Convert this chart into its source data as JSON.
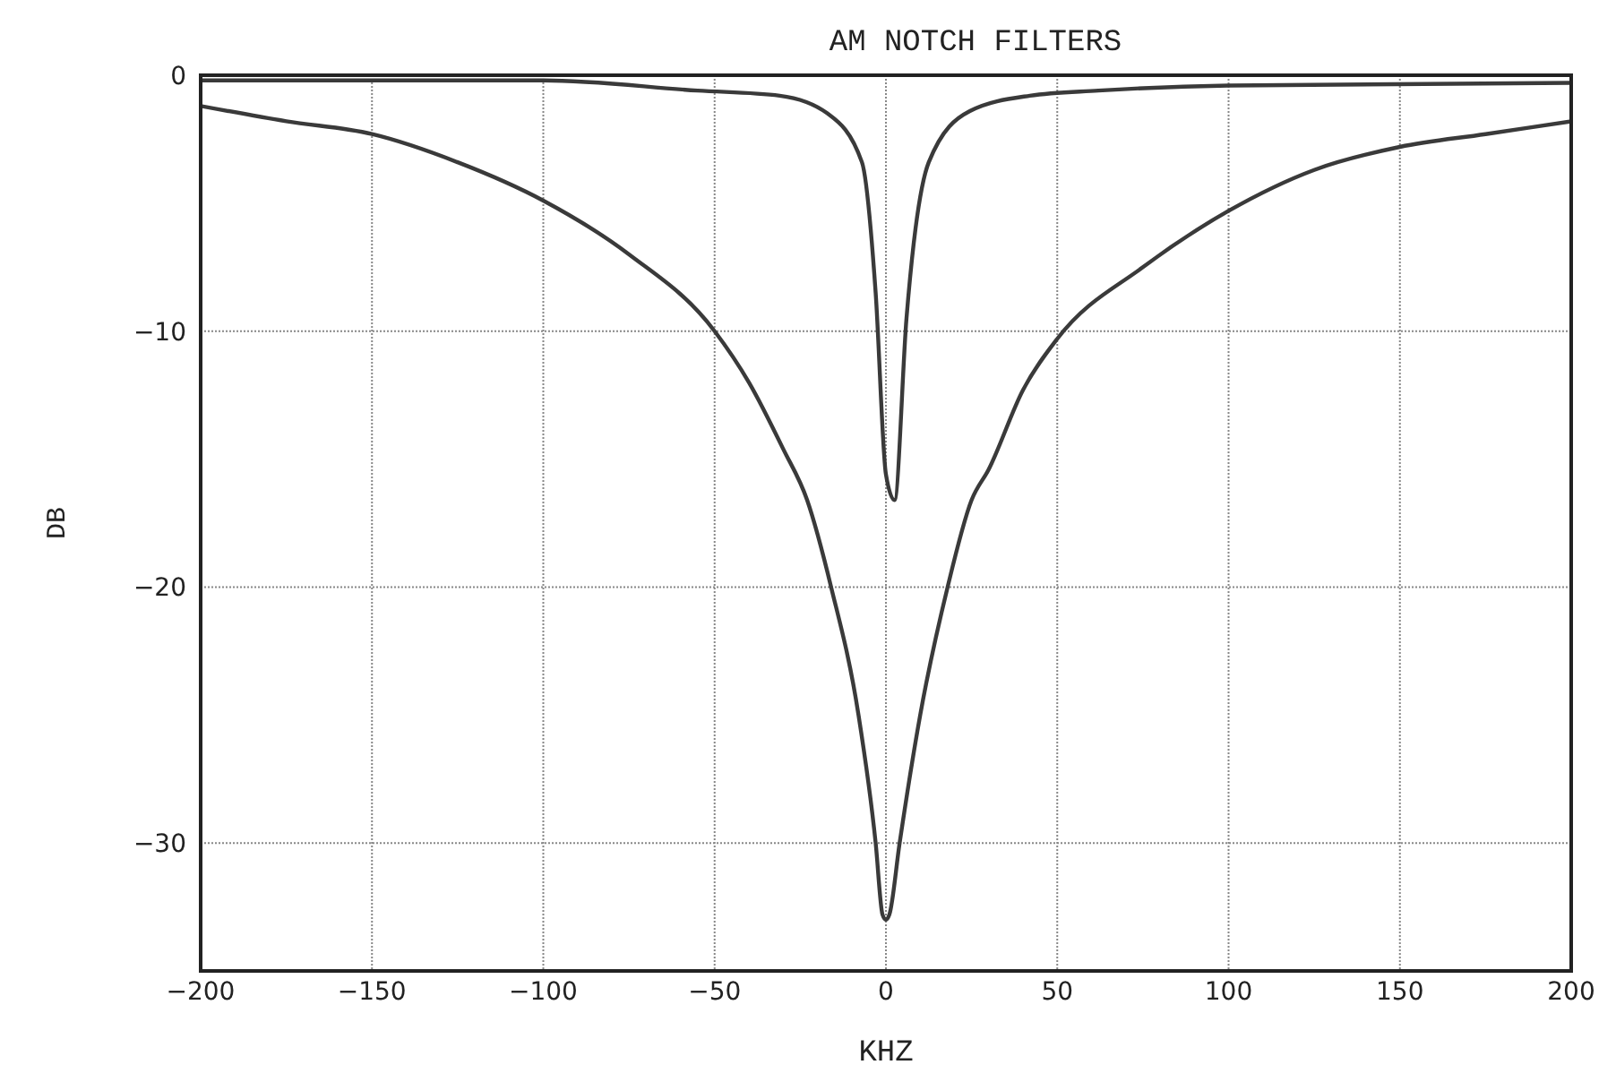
{
  "chart_data": {
    "type": "line",
    "title": "AM NOTCH FILTERS",
    "xlabel": "KHZ",
    "ylabel": "DB",
    "xlim": [
      -200,
      200
    ],
    "xticks": [
      -200,
      -150,
      -100,
      -50,
      0,
      50,
      100,
      150,
      200
    ],
    "ylim": [
      -35,
      0
    ],
    "yticks": [
      0,
      -10,
      -20,
      -30
    ],
    "grid": true,
    "marker": "none",
    "line_style": "solid",
    "series": [
      {
        "color": "#3a3a3a",
        "x": [
          -200,
          -175,
          -150,
          -125,
          -100,
          -75,
          -50,
          -40,
          -30,
          -23,
          -16,
          -8,
          -3,
          -1,
          0,
          1,
          4,
          10,
          18,
          25,
          30,
          40,
          50,
          75,
          100,
          125,
          150,
          175,
          200
        ],
        "values": [
          -1.2,
          -1.8,
          -2.3,
          -3.4,
          -4.9,
          -7.0,
          -10,
          -12,
          -14.6,
          -16.6,
          -20,
          -25,
          -30,
          -32.8,
          -33,
          -32.8,
          -30,
          -25,
          -20,
          -16.6,
          -15.4,
          -12.3,
          -10.3,
          -7.5,
          -5.3,
          -3.7,
          -2.8,
          -2.3,
          -1.8
        ]
      },
      {
        "color": "#3a3a3a",
        "x": [
          -200,
          -100,
          -55,
          -31,
          -17,
          -7,
          -3,
          0,
          2.5,
          6,
          12.5,
          24.5,
          42,
          62,
          100,
          200
        ],
        "values": [
          -0.2,
          -0.2,
          -0.6,
          -0.8,
          -1.5,
          -3.4,
          -8.5,
          -15.6,
          -16.6,
          -9.5,
          -3.4,
          -1.4,
          -0.8,
          -0.6,
          -0.4,
          -0.3
        ]
      }
    ]
  }
}
